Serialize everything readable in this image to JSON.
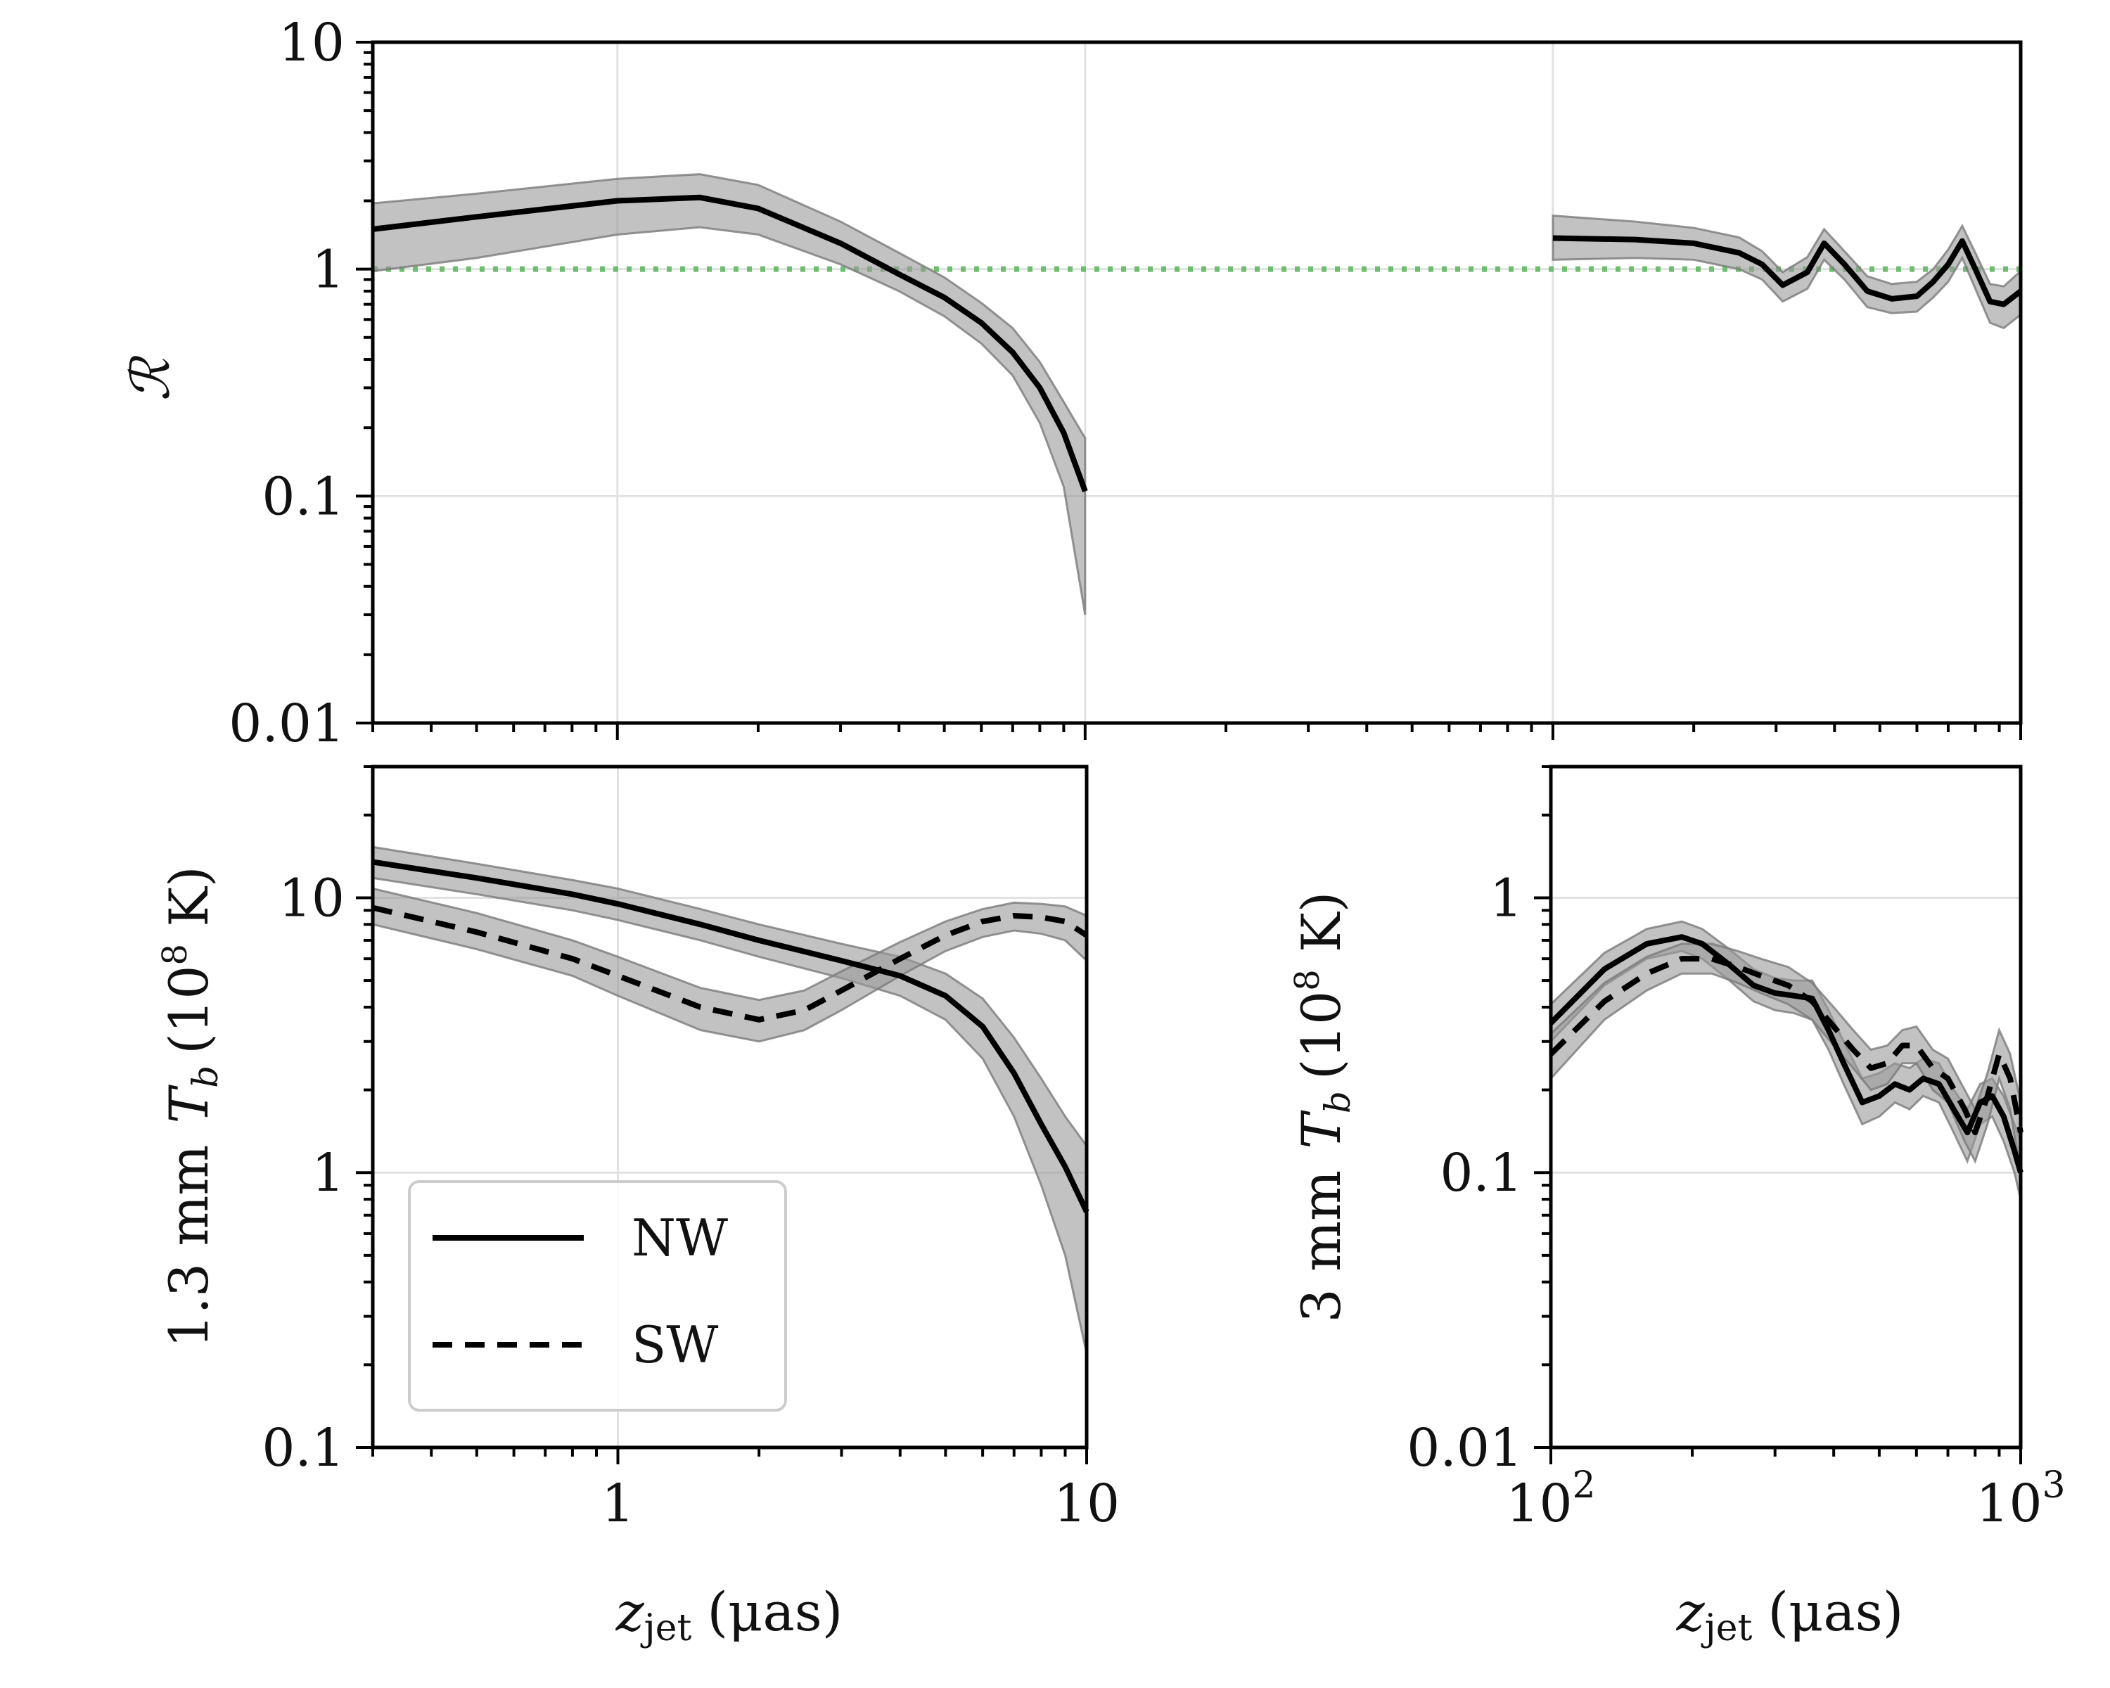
{
  "chart_data": [
    {
      "id": "ratio",
      "type": "line",
      "ylabel": "ℛ",
      "xscale": "log",
      "yscale": "log",
      "xlim": [
        0.3,
        1000
      ],
      "ylim": [
        0.01,
        10
      ],
      "yticks": [
        {
          "v": 0.01,
          "label": "0.01"
        },
        {
          "v": 0.1,
          "label": "0.1"
        },
        {
          "v": 1,
          "label": "1"
        },
        {
          "v": 10,
          "label": "10"
        }
      ],
      "xgrid": [
        1,
        10,
        100
      ],
      "reference_line": {
        "y": 1,
        "style": "dotted",
        "color": "#6cbf6c"
      },
      "series": [
        {
          "name": "ratio-inner",
          "style": "solid",
          "x": [
            0.3,
            0.5,
            1.0,
            1.5,
            2.0,
            3.0,
            4.0,
            5.0,
            6.0,
            7.0,
            8.0,
            9.0,
            10.0
          ],
          "y": [
            1.5,
            1.7,
            2.0,
            2.07,
            1.85,
            1.3,
            0.95,
            0.75,
            0.58,
            0.43,
            0.3,
            0.19,
            0.105
          ],
          "lo": [
            0.98,
            1.12,
            1.42,
            1.53,
            1.42,
            1.05,
            0.8,
            0.62,
            0.47,
            0.34,
            0.21,
            0.11,
            0.03
          ],
          "hi": [
            1.95,
            2.15,
            2.5,
            2.62,
            2.35,
            1.62,
            1.18,
            0.92,
            0.71,
            0.55,
            0.39,
            0.26,
            0.18
          ]
        },
        {
          "name": "ratio-outer",
          "style": "solid",
          "x": [
            100,
            150,
            200,
            250,
            280,
            310,
            350,
            380,
            420,
            470,
            530,
            600,
            650,
            700,
            750,
            800,
            860,
            920,
            1000
          ],
          "y": [
            1.37,
            1.35,
            1.3,
            1.18,
            1.05,
            0.85,
            0.97,
            1.3,
            1.05,
            0.8,
            0.74,
            0.76,
            0.88,
            1.05,
            1.33,
            1.0,
            0.72,
            0.7,
            0.8
          ],
          "lo": [
            1.1,
            1.12,
            1.1,
            1.0,
            0.9,
            0.72,
            0.82,
            1.1,
            0.9,
            0.68,
            0.64,
            0.65,
            0.75,
            0.88,
            1.12,
            0.82,
            0.58,
            0.55,
            0.63
          ],
          "hi": [
            1.72,
            1.62,
            1.52,
            1.38,
            1.2,
            0.97,
            1.13,
            1.5,
            1.2,
            0.93,
            0.86,
            0.88,
            1.0,
            1.22,
            1.55,
            1.18,
            0.86,
            0.84,
            0.98
          ]
        }
      ]
    },
    {
      "id": "tb-1p3mm",
      "type": "line",
      "ylabel": "1.3 mm  Tb (10⁸ K)",
      "xlabel": "zjet (μas)",
      "xscale": "log",
      "yscale": "log",
      "xlim": [
        0.3,
        10
      ],
      "ylim": [
        0.1,
        30
      ],
      "xticks": [
        {
          "v": 1,
          "label": "1"
        },
        {
          "v": 10,
          "label": "10"
        }
      ],
      "yticks": [
        {
          "v": 0.1,
          "label": "0.1"
        },
        {
          "v": 1,
          "label": "1"
        },
        {
          "v": 10,
          "label": "10"
        }
      ],
      "series": [
        {
          "name": "NW",
          "style": "solid",
          "x": [
            0.3,
            0.5,
            0.8,
            1.0,
            1.5,
            2.0,
            3.0,
            4.0,
            5.0,
            6.0,
            7.0,
            8.0,
            9.0,
            10.0
          ],
          "y": [
            13.5,
            11.8,
            10.3,
            9.5,
            8.0,
            7.0,
            5.9,
            5.2,
            4.4,
            3.4,
            2.3,
            1.5,
            1.05,
            0.72
          ],
          "lo": [
            11.8,
            10.3,
            9.0,
            8.3,
            7.0,
            6.1,
            5.1,
            4.4,
            3.6,
            2.6,
            1.6,
            0.9,
            0.5,
            0.22
          ],
          "hi": [
            15.3,
            13.3,
            11.6,
            10.8,
            9.1,
            8.0,
            6.8,
            6.1,
            5.3,
            4.3,
            3.1,
            2.2,
            1.6,
            1.25
          ]
        },
        {
          "name": "SW",
          "style": "dashed",
          "x": [
            0.3,
            0.5,
            0.8,
            1.0,
            1.5,
            2.0,
            2.5,
            3.0,
            4.0,
            5.0,
            6.0,
            7.0,
            8.0,
            9.0,
            10.0
          ],
          "y": [
            9.2,
            7.5,
            6.0,
            5.2,
            4.0,
            3.6,
            3.9,
            4.6,
            6.0,
            7.3,
            8.2,
            8.6,
            8.5,
            8.2,
            7.3
          ],
          "lo": [
            8.0,
            6.5,
            5.2,
            4.4,
            3.3,
            3.0,
            3.3,
            3.9,
            5.2,
            6.4,
            7.2,
            7.6,
            7.4,
            7.0,
            5.9
          ],
          "hi": [
            10.8,
            8.8,
            7.0,
            6.1,
            4.7,
            4.25,
            4.6,
            5.4,
            6.9,
            8.2,
            9.1,
            9.6,
            9.5,
            9.3,
            8.6
          ]
        }
      ],
      "legend": {
        "placement": "lower-left",
        "entries": [
          {
            "label": "NW",
            "style": "solid"
          },
          {
            "label": "SW",
            "style": "dashed"
          }
        ]
      }
    },
    {
      "id": "tb-3mm",
      "type": "line",
      "ylabel": "3 mm  Tb (10⁸ K)",
      "xlabel": "zjet (μas)",
      "xscale": "log",
      "yscale": "log",
      "xlim": [
        100,
        1000
      ],
      "ylim": [
        0.01,
        3
      ],
      "xticks": [
        {
          "v": 100,
          "base": "10",
          "exp": "2"
        },
        {
          "v": 1000,
          "base": "10",
          "exp": "3"
        }
      ],
      "yticks": [
        {
          "v": 0.01,
          "label": "0.01"
        },
        {
          "v": 0.1,
          "label": "0.1"
        },
        {
          "v": 1,
          "label": "1"
        }
      ],
      "series": [
        {
          "name": "NW",
          "style": "solid",
          "x": [
            100,
            130,
            160,
            190,
            210,
            240,
            270,
            300,
            330,
            360,
            390,
            420,
            460,
            500,
            540,
            580,
            620,
            670,
            720,
            770,
            820,
            870,
            920,
            970,
            1000
          ],
          "y": [
            0.35,
            0.55,
            0.68,
            0.72,
            0.68,
            0.57,
            0.48,
            0.45,
            0.44,
            0.43,
            0.33,
            0.25,
            0.18,
            0.19,
            0.21,
            0.2,
            0.22,
            0.21,
            0.17,
            0.14,
            0.18,
            0.19,
            0.16,
            0.12,
            0.1
          ],
          "lo": [
            0.3,
            0.48,
            0.6,
            0.64,
            0.6,
            0.5,
            0.42,
            0.39,
            0.38,
            0.36,
            0.28,
            0.21,
            0.15,
            0.16,
            0.18,
            0.17,
            0.19,
            0.18,
            0.14,
            0.11,
            0.15,
            0.16,
            0.13,
            0.1,
            0.08
          ],
          "hi": [
            0.41,
            0.63,
            0.77,
            0.82,
            0.77,
            0.65,
            0.55,
            0.51,
            0.5,
            0.5,
            0.39,
            0.3,
            0.22,
            0.23,
            0.25,
            0.24,
            0.26,
            0.25,
            0.2,
            0.17,
            0.21,
            0.22,
            0.19,
            0.15,
            0.13
          ]
        },
        {
          "name": "SW",
          "style": "dashed",
          "x": [
            100,
            130,
            160,
            190,
            220,
            250,
            280,
            320,
            360,
            400,
            440,
            480,
            520,
            560,
            600,
            650,
            700,
            760,
            800,
            850,
            900,
            950,
            1000
          ],
          "y": [
            0.27,
            0.42,
            0.53,
            0.6,
            0.6,
            0.56,
            0.52,
            0.48,
            0.42,
            0.34,
            0.28,
            0.24,
            0.25,
            0.29,
            0.29,
            0.24,
            0.22,
            0.17,
            0.14,
            0.19,
            0.27,
            0.22,
            0.14
          ],
          "lo": [
            0.22,
            0.36,
            0.46,
            0.53,
            0.53,
            0.49,
            0.45,
            0.41,
            0.36,
            0.29,
            0.24,
            0.2,
            0.21,
            0.25,
            0.25,
            0.2,
            0.18,
            0.13,
            0.11,
            0.15,
            0.22,
            0.17,
            0.1
          ],
          "hi": [
            0.32,
            0.49,
            0.61,
            0.68,
            0.68,
            0.64,
            0.6,
            0.56,
            0.49,
            0.4,
            0.33,
            0.28,
            0.29,
            0.33,
            0.34,
            0.28,
            0.26,
            0.2,
            0.17,
            0.23,
            0.33,
            0.27,
            0.18
          ]
        }
      ]
    }
  ],
  "labels": {
    "ratio_ylabel": "ℛ",
    "xlabel_base": "z",
    "xlabel_sub": "jet",
    "xlabel_unit": "(μas)",
    "tb_prefix_1p3": "1.3 mm",
    "tb_prefix_3": "3 mm",
    "tb_symbol": "T",
    "tb_sub": "b",
    "tb_unit_open": "(10",
    "tb_unit_exp": "8",
    "tb_unit_close": " K)"
  },
  "legend": {
    "nw_label": "NW",
    "sw_label": "SW"
  }
}
